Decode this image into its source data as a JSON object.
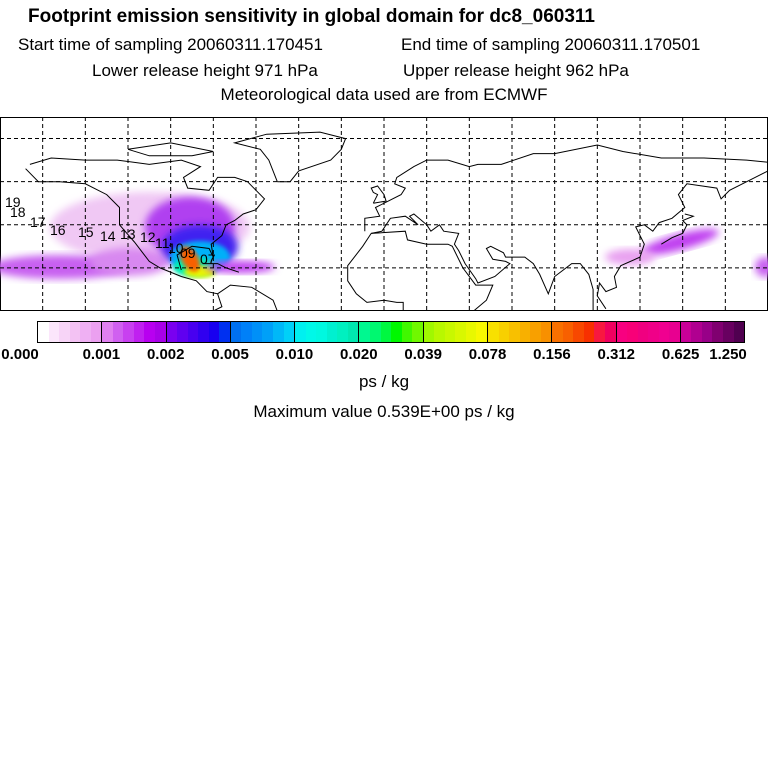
{
  "title": "Footprint emission sensitivity in global domain for dc8_060311",
  "start_time": "Start time of sampling 20060311.170451",
  "end_time": "End time of sampling 20060311.170501",
  "lower_release": "Lower release height  971 hPa",
  "upper_release": "Upper release height  962 hPa",
  "met_data": "Meteorological data used are from ECMWF",
  "map": {
    "domain": "global",
    "lon_range": [
      -180,
      180
    ],
    "lat_range": [
      0,
      90
    ],
    "grid_spacing_deg": 20,
    "trajectory_labels": [
      "19",
      "18",
      "17",
      "16",
      "15",
      "14",
      "13",
      "12",
      "11",
      "10",
      "09",
      "07"
    ]
  },
  "colorbar": {
    "tick_labels": [
      "0.000",
      "0.001",
      "0.002",
      "0.005",
      "0.010",
      "0.020",
      "0.039",
      "0.078",
      "0.156",
      "0.312",
      "0.625",
      "1.250"
    ],
    "colors": [
      [
        "#ffffff",
        "#fbe6fb",
        "#f7d4f7",
        "#f3c2f3",
        "#efb0f3",
        "#eba0f0"
      ],
      [
        "#e080f0",
        "#d060f0",
        "#c840f0",
        "#c020f0",
        "#b800f0",
        "#a800e8"
      ],
      [
        "#7a00f0",
        "#6000f0",
        "#4800f0",
        "#3000f0",
        "#1800f0",
        "#0030f0"
      ],
      [
        "#0070f0",
        "#0080f8",
        "#0090f8",
        "#00a0f8",
        "#00b8f8",
        "#00d0f8"
      ],
      [
        "#00f0f0",
        "#00f8e8",
        "#00f8e0",
        "#00f0d0",
        "#00f0c0",
        "#00e8b0"
      ],
      [
        "#00f890",
        "#00f870",
        "#00f840",
        "#00f800",
        "#40f800",
        "#70f800"
      ],
      [
        "#a0f800",
        "#b8f800",
        "#c8f800",
        "#d8f800",
        "#e8f800",
        "#f8f800"
      ],
      [
        "#f8e000",
        "#f8d000",
        "#f8c000",
        "#f8b000",
        "#f8a000",
        "#f89000"
      ],
      [
        "#f87000",
        "#f86000",
        "#f84800",
        "#f83000",
        "#f81840",
        "#f00060"
      ],
      [
        "#f80080",
        "#f80078",
        "#f00080",
        "#f00088",
        "#f00090",
        "#e80090"
      ],
      [
        "#c80098",
        "#b00090",
        "#980088",
        "#800070",
        "#680060",
        "#500050"
      ]
    ]
  },
  "units": "ps / kg",
  "maximum": "Maximum value  0.539E+00 ps / kg"
}
